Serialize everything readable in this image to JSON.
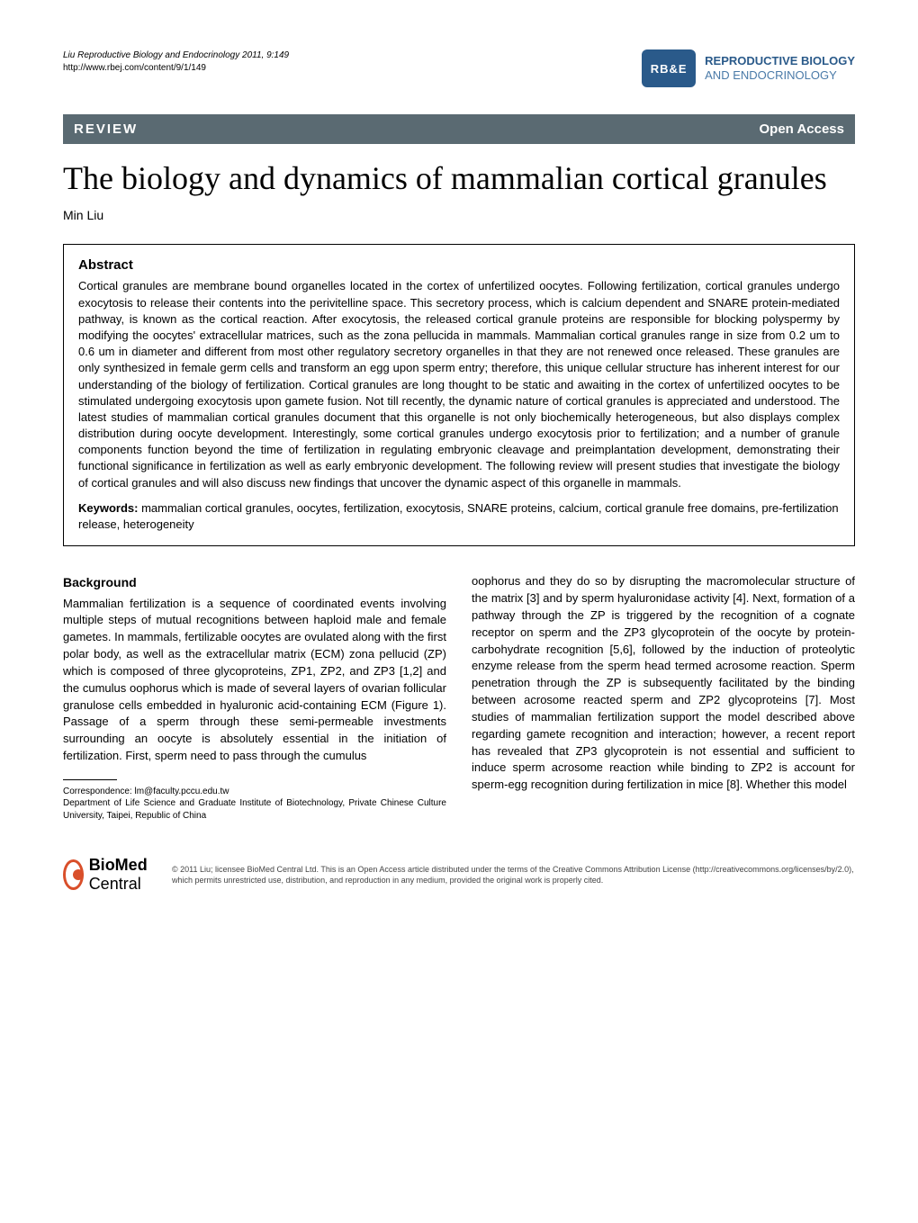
{
  "header": {
    "citation": "Liu Reproductive Biology and Endocrinology 2011, 9:149",
    "url": "http://www.rbej.com/content/9/1/149",
    "logo_abbr": "RB&E",
    "logo_line1": "REPRODUCTIVE BIOLOGY",
    "logo_line2": "AND ENDOCRINOLOGY",
    "logo_bg": "#2a5a8a",
    "logo_text1_color": "#2a5a8a",
    "logo_text2_color": "#4a7aa8"
  },
  "bar": {
    "left": "REVIEW",
    "right": "Open Access",
    "bg": "#5a6a72",
    "fg": "#ffffff"
  },
  "title": "The biology and dynamics of mammalian cortical granules",
  "author": "Min Liu",
  "abstract": {
    "heading": "Abstract",
    "body": "Cortical granules are membrane bound organelles located in the cortex of unfertilized oocytes. Following fertilization, cortical granules undergo exocytosis to release their contents into the perivitelline space. This secretory process, which is calcium dependent and SNARE protein-mediated pathway, is known as the cortical reaction. After exocytosis, the released cortical granule proteins are responsible for blocking polyspermy by modifying the oocytes' extracellular matrices, such as the zona pellucida in mammals. Mammalian cortical granules range in size from 0.2 um to 0.6 um in diameter and different from most other regulatory secretory organelles in that they are not renewed once released. These granules are only synthesized in female germ cells and transform an egg upon sperm entry; therefore, this unique cellular structure has inherent interest for our understanding of the biology of fertilization. Cortical granules are long thought to be static and awaiting in the cortex of unfertilized oocytes to be stimulated undergoing exocytosis upon gamete fusion. Not till recently, the dynamic nature of cortical granules is appreciated and understood. The latest studies of mammalian cortical granules document that this organelle is not only biochemically heterogeneous, but also displays complex distribution during oocyte development. Interestingly, some cortical granules undergo exocytosis prior to fertilization; and a number of granule components function beyond the time of fertilization in regulating embryonic cleavage and preimplantation development, demonstrating their functional significance in fertilization as well as early embryonic development. The following review will present studies that investigate the biology of cortical granules and will also discuss new findings that uncover the dynamic aspect of this organelle in mammals.",
    "kw_label": "Keywords:",
    "keywords": "mammalian cortical granules, oocytes, fertilization, exocytosis, SNARE proteins, calcium, cortical granule free domains, pre-fertilization release, heterogeneity"
  },
  "body": {
    "section_h": "Background",
    "col1": "Mammalian fertilization is a sequence of coordinated events involving multiple steps of mutual recognitions between haploid male and female gametes. In mammals, fertilizable oocytes are ovulated along with the first polar body, as well as the extracellular matrix (ECM) zona pellucid (ZP) which is composed of three glycoproteins, ZP1, ZP2, and ZP3 [1,2] and the cumulus oophorus which is made of several layers of ovarian follicular granulose cells embedded in hyaluronic acid-containing ECM (Figure 1). Passage of a sperm through these semi-permeable investments surrounding an oocyte is absolutely essential in the initiation of fertilization. First, sperm need to pass through the cumulus",
    "col2": "oophorus and they do so by disrupting the macromolecular structure of the matrix [3] and by sperm hyaluronidase activity [4]. Next, formation of a pathway through the ZP is triggered by the recognition of a cognate receptor on sperm and the ZP3 glycoprotein of the oocyte by protein-carbohydrate recognition [5,6], followed by the induction of proteolytic enzyme release from the sperm head termed acrosome reaction. Sperm penetration through the ZP is subsequently facilitated by the binding between acrosome reacted sperm and ZP2 glycoproteins [7]. Most studies of mammalian fertilization support the model described above regarding gamete recognition and interaction; however, a recent report has revealed that ZP3 glycoprotein is not essential and sufficient to induce sperm acrosome reaction while binding to ZP2 is account for sperm-egg recognition during fertilization in mice [8]. Whether this model"
  },
  "correspondence": {
    "email_label": "Correspondence: ",
    "email": "lm@faculty.pccu.edu.tw",
    "affil": "Department of Life Science and Graduate Institute of Biotechnology, Private Chinese Culture University, Taipei, Republic of China"
  },
  "footer": {
    "bmc_bold": "BioMed",
    "bmc_light": " Central",
    "ring_color": "#d94f2a",
    "copyright": "© 2011 Liu; licensee BioMed Central Ltd. This is an Open Access article distributed under the terms of the Creative Commons Attribution License (http://creativecommons.org/licenses/by/2.0), which permits unrestricted use, distribution, and reproduction in any medium, provided the original work is properly cited."
  }
}
